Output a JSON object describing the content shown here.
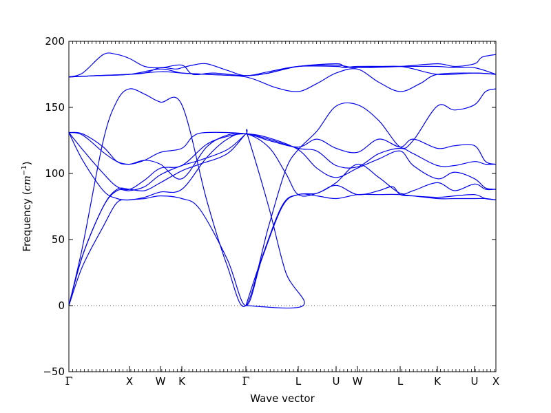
{
  "chart_data": {
    "type": "line",
    "xlabel": "Wave vector",
    "ylabel": {
      "text": "Frequency (",
      "unit": "cm",
      "exponent": "−1",
      "close": ")"
    },
    "ylim": [
      -50,
      200
    ],
    "yticks": [
      -50,
      0,
      50,
      100,
      150,
      200
    ],
    "ytick_labels": [
      "−50",
      "0",
      "50",
      "100",
      "150",
      "200"
    ],
    "grid": false,
    "zero_line": {
      "value": 0,
      "style": "dotted",
      "color": "#555555"
    },
    "line_color": "#0000ee",
    "x_range": [
      0,
      620
    ],
    "minor_tick_step": 5.62,
    "points": [
      {
        "label": "Γ",
        "x": 0
      },
      {
        "label": "X",
        "x": 88
      },
      {
        "label": "W",
        "x": 133
      },
      {
        "label": "K",
        "x": 164
      },
      {
        "label": "Γ",
        "x": 257
      },
      {
        "label": "L",
        "x": 333
      },
      {
        "label": "U",
        "x": 388
      },
      {
        "label": "W",
        "x": 419
      },
      {
        "label": "L",
        "x": 481
      },
      {
        "label": "K",
        "x": 535
      },
      {
        "label": "U",
        "x": 589
      },
      {
        "label": "X",
        "x": 620
      }
    ],
    "series": [
      {
        "values": [
          [
            0,
            173
          ],
          [
            20,
            176
          ],
          [
            50,
            190
          ],
          [
            70,
            190
          ],
          [
            88,
            187
          ],
          [
            110,
            181
          ],
          [
            133,
            180
          ],
          [
            164,
            182
          ],
          [
            180,
            175
          ],
          [
            210,
            176
          ],
          [
            257,
            174
          ],
          [
            290,
            176
          ],
          [
            333,
            181
          ],
          [
            388,
            183
          ],
          [
            400,
            181
          ],
          [
            419,
            180
          ],
          [
            481,
            181
          ],
          [
            535,
            183
          ],
          [
            560,
            181
          ],
          [
            589,
            183
          ],
          [
            600,
            188
          ],
          [
            620,
            190
          ]
        ]
      },
      {
        "values": [
          [
            0,
            173
          ],
          [
            40,
            174
          ],
          [
            88,
            175
          ],
          [
            110,
            176
          ],
          [
            133,
            180
          ],
          [
            155,
            179
          ],
          [
            164,
            180
          ],
          [
            180,
            182
          ],
          [
            200,
            183
          ],
          [
            230,
            178
          ],
          [
            257,
            174
          ],
          [
            290,
            177
          ],
          [
            333,
            181
          ],
          [
            388,
            181
          ],
          [
            400,
            180
          ],
          [
            419,
            181
          ],
          [
            481,
            181
          ],
          [
            535,
            181
          ],
          [
            560,
            180
          ],
          [
            589,
            180
          ],
          [
            620,
            175
          ]
        ]
      },
      {
        "values": [
          [
            0,
            173
          ],
          [
            40,
            174
          ],
          [
            88,
            175
          ],
          [
            133,
            177
          ],
          [
            164,
            176
          ],
          [
            200,
            175
          ],
          [
            257,
            174
          ],
          [
            290,
            176
          ],
          [
            333,
            181
          ],
          [
            388,
            182
          ],
          [
            419,
            180
          ],
          [
            481,
            181
          ],
          [
            535,
            175
          ],
          [
            589,
            176
          ],
          [
            620,
            175
          ]
        ]
      },
      {
        "values": [
          [
            0,
            173
          ],
          [
            40,
            174
          ],
          [
            88,
            175
          ],
          [
            133,
            179
          ],
          [
            164,
            176
          ],
          [
            200,
            175
          ],
          [
            257,
            173
          ],
          [
            300,
            165
          ],
          [
            333,
            162
          ],
          [
            360,
            168
          ],
          [
            388,
            176
          ],
          [
            419,
            179
          ],
          [
            450,
            169
          ],
          [
            481,
            162
          ],
          [
            510,
            168
          ],
          [
            535,
            175
          ],
          [
            589,
            176
          ],
          [
            620,
            175
          ]
        ]
      },
      {
        "values": [
          [
            0,
            0
          ],
          [
            20,
            45
          ],
          [
            50,
            125
          ],
          [
            70,
            155
          ],
          [
            88,
            164
          ],
          [
            110,
            160
          ],
          [
            133,
            154
          ],
          [
            164,
            152
          ],
          [
            200,
            80
          ],
          [
            230,
            30
          ],
          [
            257,
            0
          ],
          [
            290,
            60
          ],
          [
            315,
            103
          ],
          [
            333,
            118
          ],
          [
            360,
            132
          ],
          [
            388,
            151
          ],
          [
            419,
            152
          ],
          [
            450,
            140
          ],
          [
            481,
            120
          ],
          [
            500,
            125
          ],
          [
            535,
            151
          ],
          [
            560,
            148
          ],
          [
            589,
            152
          ],
          [
            605,
            162
          ],
          [
            620,
            164
          ]
        ]
      },
      {
        "values": [
          [
            0,
            131
          ],
          [
            20,
            130
          ],
          [
            50,
            120
          ],
          [
            70,
            109
          ],
          [
            88,
            107
          ],
          [
            110,
            110
          ],
          [
            133,
            116
          ],
          [
            164,
            119
          ],
          [
            180,
            128
          ],
          [
            200,
            131
          ],
          [
            257,
            130
          ],
          [
            290,
            125
          ],
          [
            333,
            120
          ],
          [
            360,
            126
          ],
          [
            388,
            119
          ],
          [
            419,
            116
          ],
          [
            450,
            126
          ],
          [
            481,
            120
          ],
          [
            500,
            126
          ],
          [
            535,
            119
          ],
          [
            560,
            121
          ],
          [
            589,
            121
          ],
          [
            605,
            109
          ],
          [
            620,
            107
          ]
        ]
      },
      {
        "values": [
          [
            0,
            131
          ],
          [
            20,
            129
          ],
          [
            50,
            116
          ],
          [
            70,
            109
          ],
          [
            88,
            107
          ],
          [
            110,
            110
          ],
          [
            133,
            107
          ],
          [
            164,
            96
          ],
          [
            200,
            120
          ],
          [
            230,
            129
          ],
          [
            257,
            130
          ],
          [
            290,
            126
          ],
          [
            333,
            119
          ],
          [
            360,
            117
          ],
          [
            388,
            106
          ],
          [
            419,
            105
          ],
          [
            450,
            115
          ],
          [
            481,
            119
          ],
          [
            500,
            115
          ],
          [
            535,
            106
          ],
          [
            560,
            106
          ],
          [
            589,
            109
          ],
          [
            605,
            107
          ],
          [
            620,
            107
          ]
        ]
      },
      {
        "values": [
          [
            0,
            131
          ],
          [
            20,
            118
          ],
          [
            50,
            100
          ],
          [
            70,
            90
          ],
          [
            88,
            88
          ],
          [
            110,
            95
          ],
          [
            133,
            104
          ],
          [
            164,
            106
          ],
          [
            200,
            122
          ],
          [
            230,
            128
          ],
          [
            257,
            130
          ],
          [
            290,
            127
          ],
          [
            333,
            118
          ],
          [
            360,
            104
          ],
          [
            388,
            97
          ],
          [
            419,
            104
          ],
          [
            450,
            111
          ],
          [
            481,
            117
          ],
          [
            500,
            106
          ],
          [
            535,
            96
          ],
          [
            560,
            101
          ],
          [
            589,
            96
          ],
          [
            605,
            89
          ],
          [
            620,
            88
          ]
        ]
      },
      {
        "values": [
          [
            0,
            131
          ],
          [
            20,
            110
          ],
          [
            50,
            87
          ],
          [
            70,
            81
          ],
          [
            88,
            80
          ],
          [
            110,
            82
          ],
          [
            133,
            86
          ],
          [
            164,
            88
          ],
          [
            200,
            112
          ],
          [
            230,
            126
          ],
          [
            257,
            130
          ],
          [
            290,
            120
          ],
          [
            315,
            100
          ],
          [
            333,
            84
          ],
          [
            360,
            85
          ],
          [
            388,
            93
          ],
          [
            419,
            107
          ],
          [
            450,
            97
          ],
          [
            481,
            85
          ],
          [
            500,
            87
          ],
          [
            535,
            93
          ],
          [
            560,
            87
          ],
          [
            589,
            92
          ],
          [
            605,
            88
          ],
          [
            620,
            88
          ]
        ]
      },
      {
        "values": [
          [
            0,
            0
          ],
          [
            20,
            38
          ],
          [
            50,
            75
          ],
          [
            70,
            88
          ],
          [
            88,
            88
          ],
          [
            110,
            87
          ],
          [
            133,
            93
          ],
          [
            164,
            102
          ],
          [
            190,
            107
          ],
          [
            230,
            115
          ],
          [
            257,
            130
          ],
          [
            260,
            128
          ],
          [
            290,
            75
          ],
          [
            315,
            25
          ],
          [
            340,
            0
          ],
          [
            257,
            0
          ]
        ]
      },
      {
        "values": [
          [
            0,
            0
          ],
          [
            20,
            38
          ],
          [
            50,
            75
          ],
          [
            70,
            87
          ],
          [
            88,
            87
          ],
          [
            110,
            90
          ],
          [
            133,
            99
          ],
          [
            164,
            106
          ],
          [
            190,
            110
          ],
          [
            230,
            118
          ],
          [
            257,
            130
          ]
        ]
      },
      {
        "values": [
          [
            0,
            0
          ],
          [
            20,
            30
          ],
          [
            50,
            60
          ],
          [
            70,
            78
          ],
          [
            88,
            80
          ],
          [
            110,
            81
          ],
          [
            133,
            83
          ],
          [
            164,
            81
          ],
          [
            190,
            73
          ],
          [
            230,
            35
          ],
          [
            257,
            0
          ],
          [
            280,
            35
          ],
          [
            310,
            75
          ],
          [
            333,
            84
          ],
          [
            360,
            83
          ],
          [
            388,
            81
          ],
          [
            419,
            84
          ],
          [
            450,
            84
          ],
          [
            481,
            84
          ],
          [
            535,
            81
          ],
          [
            560,
            81
          ],
          [
            589,
            81
          ],
          [
            605,
            81
          ],
          [
            620,
            80
          ]
        ]
      },
      {
        "values": [
          [
            257,
            0
          ],
          [
            280,
            36
          ],
          [
            310,
            76
          ],
          [
            333,
            84
          ],
          [
            360,
            85
          ],
          [
            388,
            91
          ],
          [
            419,
            84
          ],
          [
            450,
            87
          ],
          [
            470,
            90
          ],
          [
            481,
            84
          ],
          [
            500,
            83
          ],
          [
            535,
            82
          ],
          [
            560,
            83
          ],
          [
            589,
            84
          ],
          [
            605,
            81
          ],
          [
            620,
            80
          ]
        ]
      }
    ]
  }
}
